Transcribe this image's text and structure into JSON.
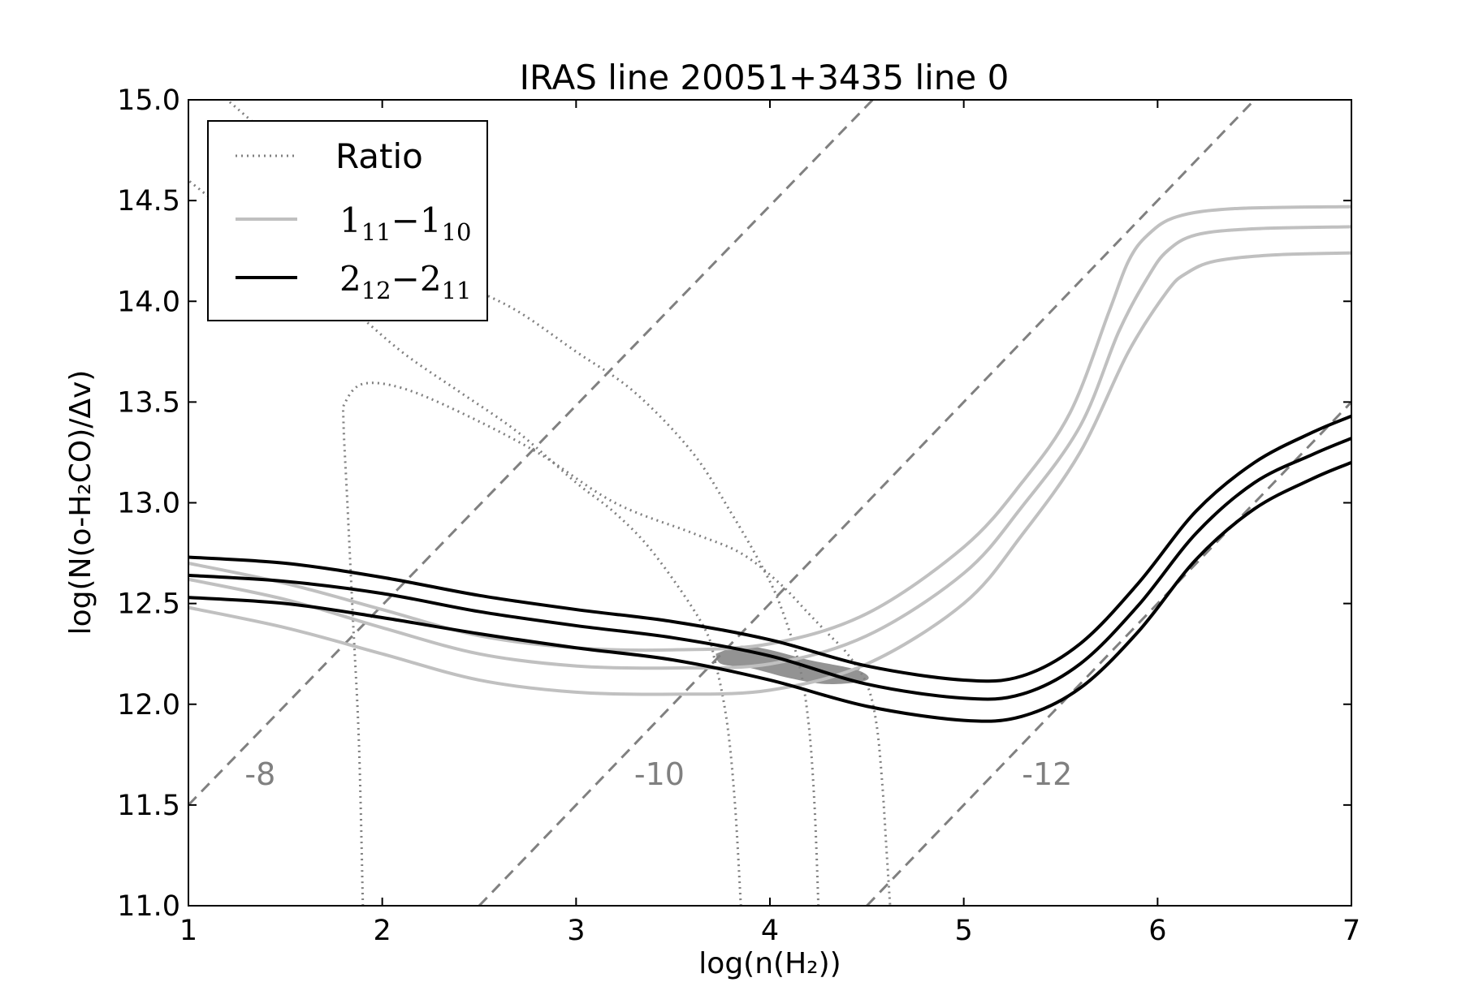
{
  "chart_data": {
    "type": "line",
    "title": "IRAS line 20051+3435 line 0",
    "xlabel": "log(n(H₂))",
    "ylabel": "log(N(o-H₂CO)/Δv)",
    "xlim": [
      1,
      7
    ],
    "ylim": [
      11.0,
      15.0
    ],
    "x_ticks": [
      "1",
      "2",
      "3",
      "4",
      "5",
      "6",
      "7"
    ],
    "y_ticks": [
      "11.0",
      "11.5",
      "12.0",
      "12.5",
      "13.0",
      "13.5",
      "14.0",
      "14.5",
      "15.0"
    ],
    "grid": false,
    "legend": {
      "position": "top-left",
      "entries": [
        {
          "label": "Ratio",
          "style": "dotted",
          "color": "#808080"
        },
        {
          "label": "1₁₁−1₁₀",
          "main_a": "1",
          "sub_a": "11",
          "dash": "−",
          "main_b": "1",
          "sub_b": "10",
          "style": "solid",
          "color": "#c0c0c0"
        },
        {
          "label": "2₁₂−2₁₁",
          "main_a": "2",
          "sub_a": "12",
          "dash": "−",
          "main_b": "2",
          "sub_b": "11",
          "style": "solid",
          "color": "#000000"
        }
      ]
    },
    "density_lines": [
      {
        "label": "-8",
        "x": [
          1,
          4.53
        ],
        "y": [
          11.5,
          15.0
        ]
      },
      {
        "label": "-10",
        "x": [
          2.5,
          6.5
        ],
        "y": [
          11.0,
          15.0
        ]
      },
      {
        "label": "-12",
        "x": [
          4.5,
          7.0
        ],
        "y": [
          11.0,
          13.5
        ]
      }
    ],
    "density_label_positions": [
      {
        "text": "-8",
        "x": 1.37,
        "y": 11.6
      },
      {
        "text": "-10",
        "x": 3.43,
        "y": 11.6
      },
      {
        "text": "-12",
        "x": 5.43,
        "y": 11.6
      }
    ],
    "series": [
      {
        "name": "Ratio",
        "role": "ratio-contour-outer",
        "color": "#808080",
        "style": "dotted",
        "x": [
          1.9,
          1.88,
          1.85,
          1.82,
          1.8,
          1.81,
          1.9,
          2.1,
          2.4,
          2.8,
          3.2,
          3.6,
          3.85,
          4.05,
          4.2,
          4.3,
          4.4,
          4.5,
          4.55,
          4.58,
          4.6,
          4.62
        ],
        "y": [
          11.0,
          11.8,
          12.4,
          13.0,
          13.4,
          13.5,
          13.59,
          13.57,
          13.45,
          13.25,
          13.0,
          12.85,
          12.75,
          12.6,
          12.45,
          12.35,
          12.25,
          12.1,
          11.9,
          11.6,
          11.3,
          11.0
        ]
      },
      {
        "name": "Ratio",
        "role": "ratio-contour-inner",
        "color": "#808080",
        "style": "dotted",
        "x": [
          3.85,
          3.82,
          3.78,
          3.72,
          3.65,
          3.4,
          3.2,
          3.0,
          2.7,
          2.4,
          2.1,
          1.8,
          1.5,
          1.2,
          1.0
        ],
        "y": [
          11.0,
          11.5,
          11.9,
          12.2,
          12.4,
          12.75,
          12.95,
          13.1,
          13.35,
          13.55,
          13.75,
          14.0,
          14.25,
          14.45,
          14.6
        ]
      },
      {
        "name": "Ratio",
        "role": "ratio-contour-mid",
        "color": "#808080",
        "style": "dotted",
        "x": [
          4.25,
          4.23,
          4.2,
          4.15,
          4.05,
          3.95,
          3.8,
          3.6,
          3.3,
          3.0,
          2.7,
          2.4,
          2.1,
          1.8,
          1.5,
          1.2
        ],
        "y": [
          11.0,
          11.5,
          11.9,
          12.2,
          12.5,
          12.7,
          12.95,
          13.25,
          13.55,
          13.75,
          13.95,
          14.1,
          14.3,
          14.5,
          14.75,
          15.0
        ]
      },
      {
        "name": "1₁₁−1₁₀ upper",
        "color": "#c0c0c0",
        "style": "solid",
        "x": [
          1.0,
          1.5,
          2.0,
          2.5,
          3.0,
          3.5,
          4.0,
          4.5,
          5.0,
          5.3,
          5.55,
          5.75,
          5.85,
          5.95,
          6.1,
          6.4,
          7.0
        ],
        "y": [
          12.7,
          12.6,
          12.47,
          12.34,
          12.28,
          12.27,
          12.3,
          12.45,
          12.78,
          13.1,
          13.45,
          13.95,
          14.2,
          14.33,
          14.42,
          14.46,
          14.47
        ]
      },
      {
        "name": "1₁₁−1₁₀ mid",
        "color": "#c0c0c0",
        "style": "solid",
        "x": [
          1.0,
          1.5,
          2.0,
          2.5,
          3.0,
          3.5,
          4.0,
          4.5,
          5.0,
          5.3,
          5.6,
          5.8,
          5.95,
          6.05,
          6.2,
          6.5,
          7.0
        ],
        "y": [
          12.62,
          12.52,
          12.38,
          12.25,
          12.19,
          12.18,
          12.2,
          12.34,
          12.65,
          12.98,
          13.38,
          13.85,
          14.12,
          14.25,
          14.33,
          14.36,
          14.37
        ]
      },
      {
        "name": "1₁₁−1₁₀ lower",
        "color": "#c0c0c0",
        "style": "solid",
        "x": [
          1.0,
          1.5,
          2.0,
          2.5,
          3.0,
          3.5,
          4.0,
          4.5,
          5.0,
          5.3,
          5.6,
          5.85,
          6.05,
          6.15,
          6.3,
          6.6,
          7.0
        ],
        "y": [
          12.48,
          12.38,
          12.25,
          12.12,
          12.06,
          12.05,
          12.07,
          12.2,
          12.5,
          12.84,
          13.25,
          13.75,
          14.05,
          14.14,
          14.2,
          14.23,
          14.24
        ]
      },
      {
        "name": "2₁₂−2₁₁ upper",
        "color": "#000000",
        "style": "solid",
        "x": [
          1.0,
          1.5,
          2.0,
          2.5,
          3.0,
          3.5,
          4.0,
          4.5,
          5.0,
          5.3,
          5.6,
          5.9,
          6.2,
          6.5,
          6.8,
          7.0
        ],
        "y": [
          12.73,
          12.7,
          12.63,
          12.54,
          12.47,
          12.41,
          12.32,
          12.19,
          12.12,
          12.14,
          12.3,
          12.6,
          12.96,
          13.2,
          13.35,
          13.43
        ]
      },
      {
        "name": "2₁₂−2₁₁ mid",
        "color": "#000000",
        "style": "solid",
        "x": [
          1.0,
          1.5,
          2.0,
          2.5,
          3.0,
          3.5,
          4.0,
          4.5,
          5.0,
          5.3,
          5.6,
          5.9,
          6.2,
          6.5,
          6.8,
          7.0
        ],
        "y": [
          12.64,
          12.61,
          12.55,
          12.46,
          12.39,
          12.33,
          12.24,
          12.1,
          12.03,
          12.05,
          12.2,
          12.49,
          12.85,
          13.1,
          13.24,
          13.32
        ]
      },
      {
        "name": "2₁₂−2₁₁ lower",
        "color": "#000000",
        "style": "solid",
        "x": [
          1.0,
          1.5,
          2.0,
          2.5,
          3.0,
          3.5,
          4.0,
          4.5,
          5.0,
          5.3,
          5.6,
          5.9,
          6.2,
          6.5,
          6.8,
          7.0
        ],
        "y": [
          12.53,
          12.5,
          12.43,
          12.35,
          12.28,
          12.22,
          12.12,
          11.99,
          11.92,
          11.94,
          12.08,
          12.36,
          12.72,
          12.97,
          13.12,
          13.2
        ]
      }
    ],
    "overlap_region": {
      "color": "#808080",
      "x": [
        3.72,
        3.85,
        4.0,
        4.2,
        4.45,
        4.5,
        4.3,
        4.1,
        3.9,
        3.75
      ],
      "y": [
        12.25,
        12.29,
        12.27,
        12.22,
        12.17,
        12.12,
        12.1,
        12.13,
        12.18,
        12.2
      ]
    }
  }
}
